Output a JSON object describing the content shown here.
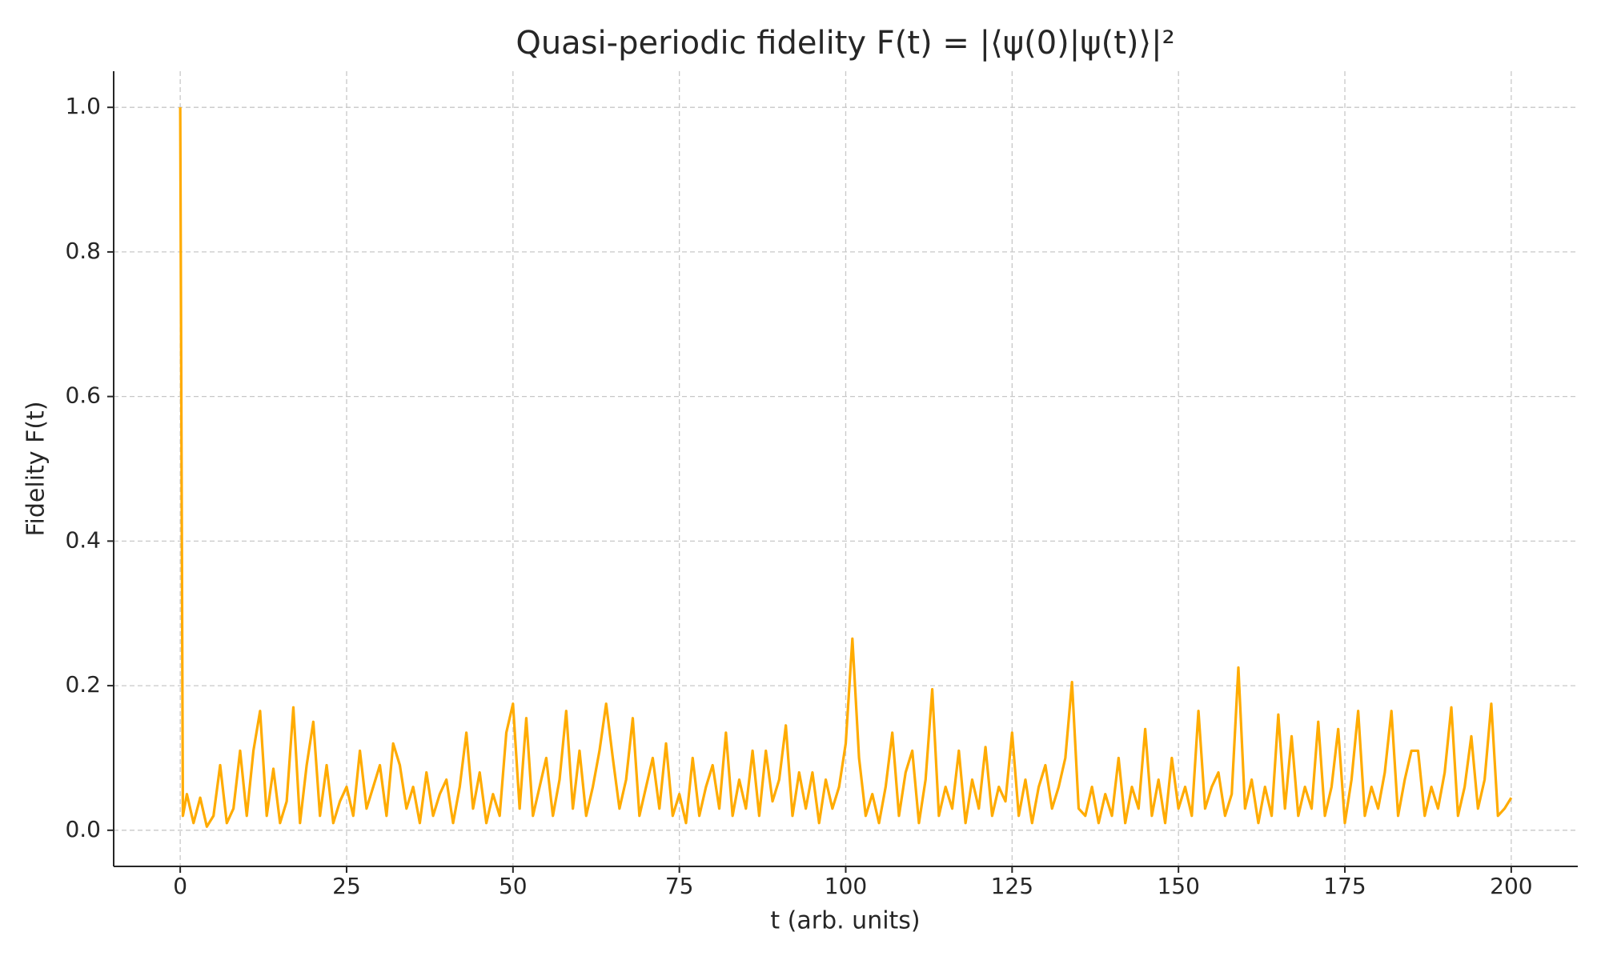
{
  "chart_data": {
    "type": "line",
    "title": "Quasi-periodic fidelity F(t) = |⟨ψ(0)|ψ(t)⟩|²",
    "xlabel": "t (arb. units)",
    "ylabel": "Fidelity F(t)",
    "x": [
      0,
      0.4,
      1,
      2,
      3,
      4,
      5,
      6,
      7,
      8,
      9,
      10,
      11,
      12,
      13,
      14,
      15,
      16,
      17,
      18,
      19,
      20,
      21,
      22,
      23,
      24,
      25,
      26,
      27,
      28,
      29,
      30,
      31,
      32,
      33,
      34,
      35,
      36,
      37,
      38,
      39,
      40,
      41,
      42,
      43,
      44,
      45,
      46,
      47,
      48,
      49,
      50,
      51,
      52,
      53,
      54,
      55,
      56,
      57,
      58,
      59,
      60,
      61,
      62,
      63,
      64,
      65,
      66,
      67,
      68,
      69,
      70,
      71,
      72,
      73,
      74,
      75,
      76,
      77,
      78,
      79,
      80,
      81,
      82,
      83,
      84,
      85,
      86,
      87,
      88,
      89,
      90,
      91,
      92,
      93,
      94,
      95,
      96,
      97,
      98,
      99,
      100,
      101,
      102,
      103,
      104,
      105,
      106,
      107,
      108,
      109,
      110,
      111,
      112,
      113,
      114,
      115,
      116,
      117,
      118,
      119,
      120,
      121,
      122,
      123,
      124,
      125,
      126,
      127,
      128,
      129,
      130,
      131,
      132,
      133,
      134,
      135,
      136,
      137,
      138,
      139,
      140,
      141,
      142,
      143,
      144,
      145,
      146,
      147,
      148,
      149,
      150,
      151,
      152,
      153,
      154,
      155,
      156,
      157,
      158,
      159,
      160,
      161,
      162,
      163,
      164,
      165,
      166,
      167,
      168,
      169,
      170,
      171,
      172,
      173,
      174,
      175,
      176,
      177,
      178,
      179,
      180,
      181,
      182,
      183,
      184,
      185,
      186,
      187,
      188,
      189,
      190,
      191,
      192,
      193,
      194,
      195,
      196,
      197,
      198,
      199,
      200
    ],
    "series": [
      {
        "name": "F(t)",
        "color": "#ffab00",
        "values": [
          1.0,
          0.02,
          0.05,
          0.01,
          0.045,
          0.005,
          0.02,
          0.09,
          0.01,
          0.03,
          0.11,
          0.02,
          0.11,
          0.165,
          0.02,
          0.085,
          0.01,
          0.04,
          0.17,
          0.01,
          0.09,
          0.15,
          0.02,
          0.09,
          0.01,
          0.04,
          0.06,
          0.02,
          0.11,
          0.03,
          0.06,
          0.09,
          0.02,
          0.12,
          0.09,
          0.03,
          0.06,
          0.01,
          0.08,
          0.02,
          0.05,
          0.07,
          0.01,
          0.06,
          0.135,
          0.03,
          0.08,
          0.01,
          0.05,
          0.02,
          0.135,
          0.175,
          0.03,
          0.155,
          0.02,
          0.06,
          0.1,
          0.02,
          0.07,
          0.165,
          0.03,
          0.11,
          0.02,
          0.06,
          0.11,
          0.175,
          0.1,
          0.03,
          0.07,
          0.155,
          0.02,
          0.06,
          0.1,
          0.03,
          0.12,
          0.02,
          0.05,
          0.01,
          0.1,
          0.02,
          0.06,
          0.09,
          0.03,
          0.135,
          0.02,
          0.07,
          0.03,
          0.11,
          0.02,
          0.11,
          0.04,
          0.07,
          0.145,
          0.02,
          0.08,
          0.03,
          0.08,
          0.01,
          0.07,
          0.03,
          0.06,
          0.12,
          0.265,
          0.1,
          0.02,
          0.05,
          0.01,
          0.06,
          0.135,
          0.02,
          0.08,
          0.11,
          0.01,
          0.07,
          0.195,
          0.02,
          0.06,
          0.03,
          0.11,
          0.01,
          0.07,
          0.03,
          0.115,
          0.02,
          0.06,
          0.04,
          0.135,
          0.02,
          0.07,
          0.01,
          0.06,
          0.09,
          0.03,
          0.06,
          0.1,
          0.205,
          0.03,
          0.02,
          0.06,
          0.01,
          0.05,
          0.02,
          0.1,
          0.01,
          0.06,
          0.03,
          0.14,
          0.02,
          0.07,
          0.01,
          0.1,
          0.03,
          0.06,
          0.02,
          0.165,
          0.03,
          0.06,
          0.08,
          0.02,
          0.05,
          0.225,
          0.03,
          0.07,
          0.01,
          0.06,
          0.02,
          0.16,
          0.03,
          0.13,
          0.02,
          0.06,
          0.03,
          0.15,
          0.02,
          0.06,
          0.14,
          0.01,
          0.07,
          0.165,
          0.02,
          0.06,
          0.03,
          0.08,
          0.165,
          0.02,
          0.07,
          0.11,
          0.11,
          0.02,
          0.06,
          0.03,
          0.08,
          0.17,
          0.02,
          0.06,
          0.13,
          0.03,
          0.07,
          0.175,
          0.02,
          0.03,
          0.045
        ]
      }
    ],
    "xlim": [
      -10,
      210
    ],
    "ylim": [
      -0.05,
      1.05
    ],
    "xticks": [
      0,
      25,
      50,
      75,
      100,
      125,
      150,
      175,
      200
    ],
    "yticks": [
      {
        "value": 0,
        "label": "0.0"
      },
      0.2,
      0.4,
      0.6,
      0.8,
      {
        "value": 1,
        "label": "1.0"
      }
    ],
    "grid": true
  }
}
